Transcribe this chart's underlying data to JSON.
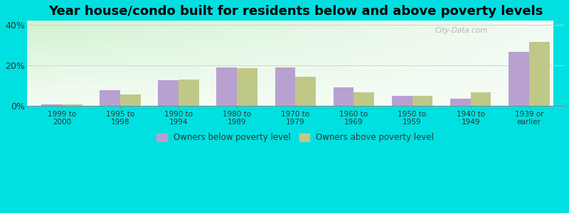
{
  "title": "Year house/condo built for residents below and above poverty levels",
  "categories": [
    "1999 to\n2000",
    "1995 to\n1998",
    "1990 to\n1994",
    "1980 to\n1989",
    "1970 to\n1979",
    "1960 to\n1969",
    "1950 to\n1959",
    "1940 to\n1949",
    "1939 or\nearlier"
  ],
  "below_poverty": [
    0.5,
    7.5,
    12.5,
    19.0,
    19.0,
    9.0,
    5.0,
    3.5,
    26.5
  ],
  "above_poverty": [
    0.8,
    5.5,
    13.0,
    18.5,
    14.5,
    6.5,
    5.0,
    6.5,
    31.5
  ],
  "below_color": "#b8a0d0",
  "above_color": "#c0c888",
  "outer_bg": "#00e0e0",
  "ylim": [
    0,
    42
  ],
  "yticks": [
    0,
    20,
    40
  ],
  "ytick_labels": [
    "0%",
    "20%",
    "40%"
  ],
  "bar_width": 0.35,
  "title_fontsize": 13,
  "legend_below_label": "Owners below poverty level",
  "legend_above_label": "Owners above poverty level",
  "grid_color": "#dddddd",
  "watermark": "City-Data.com"
}
